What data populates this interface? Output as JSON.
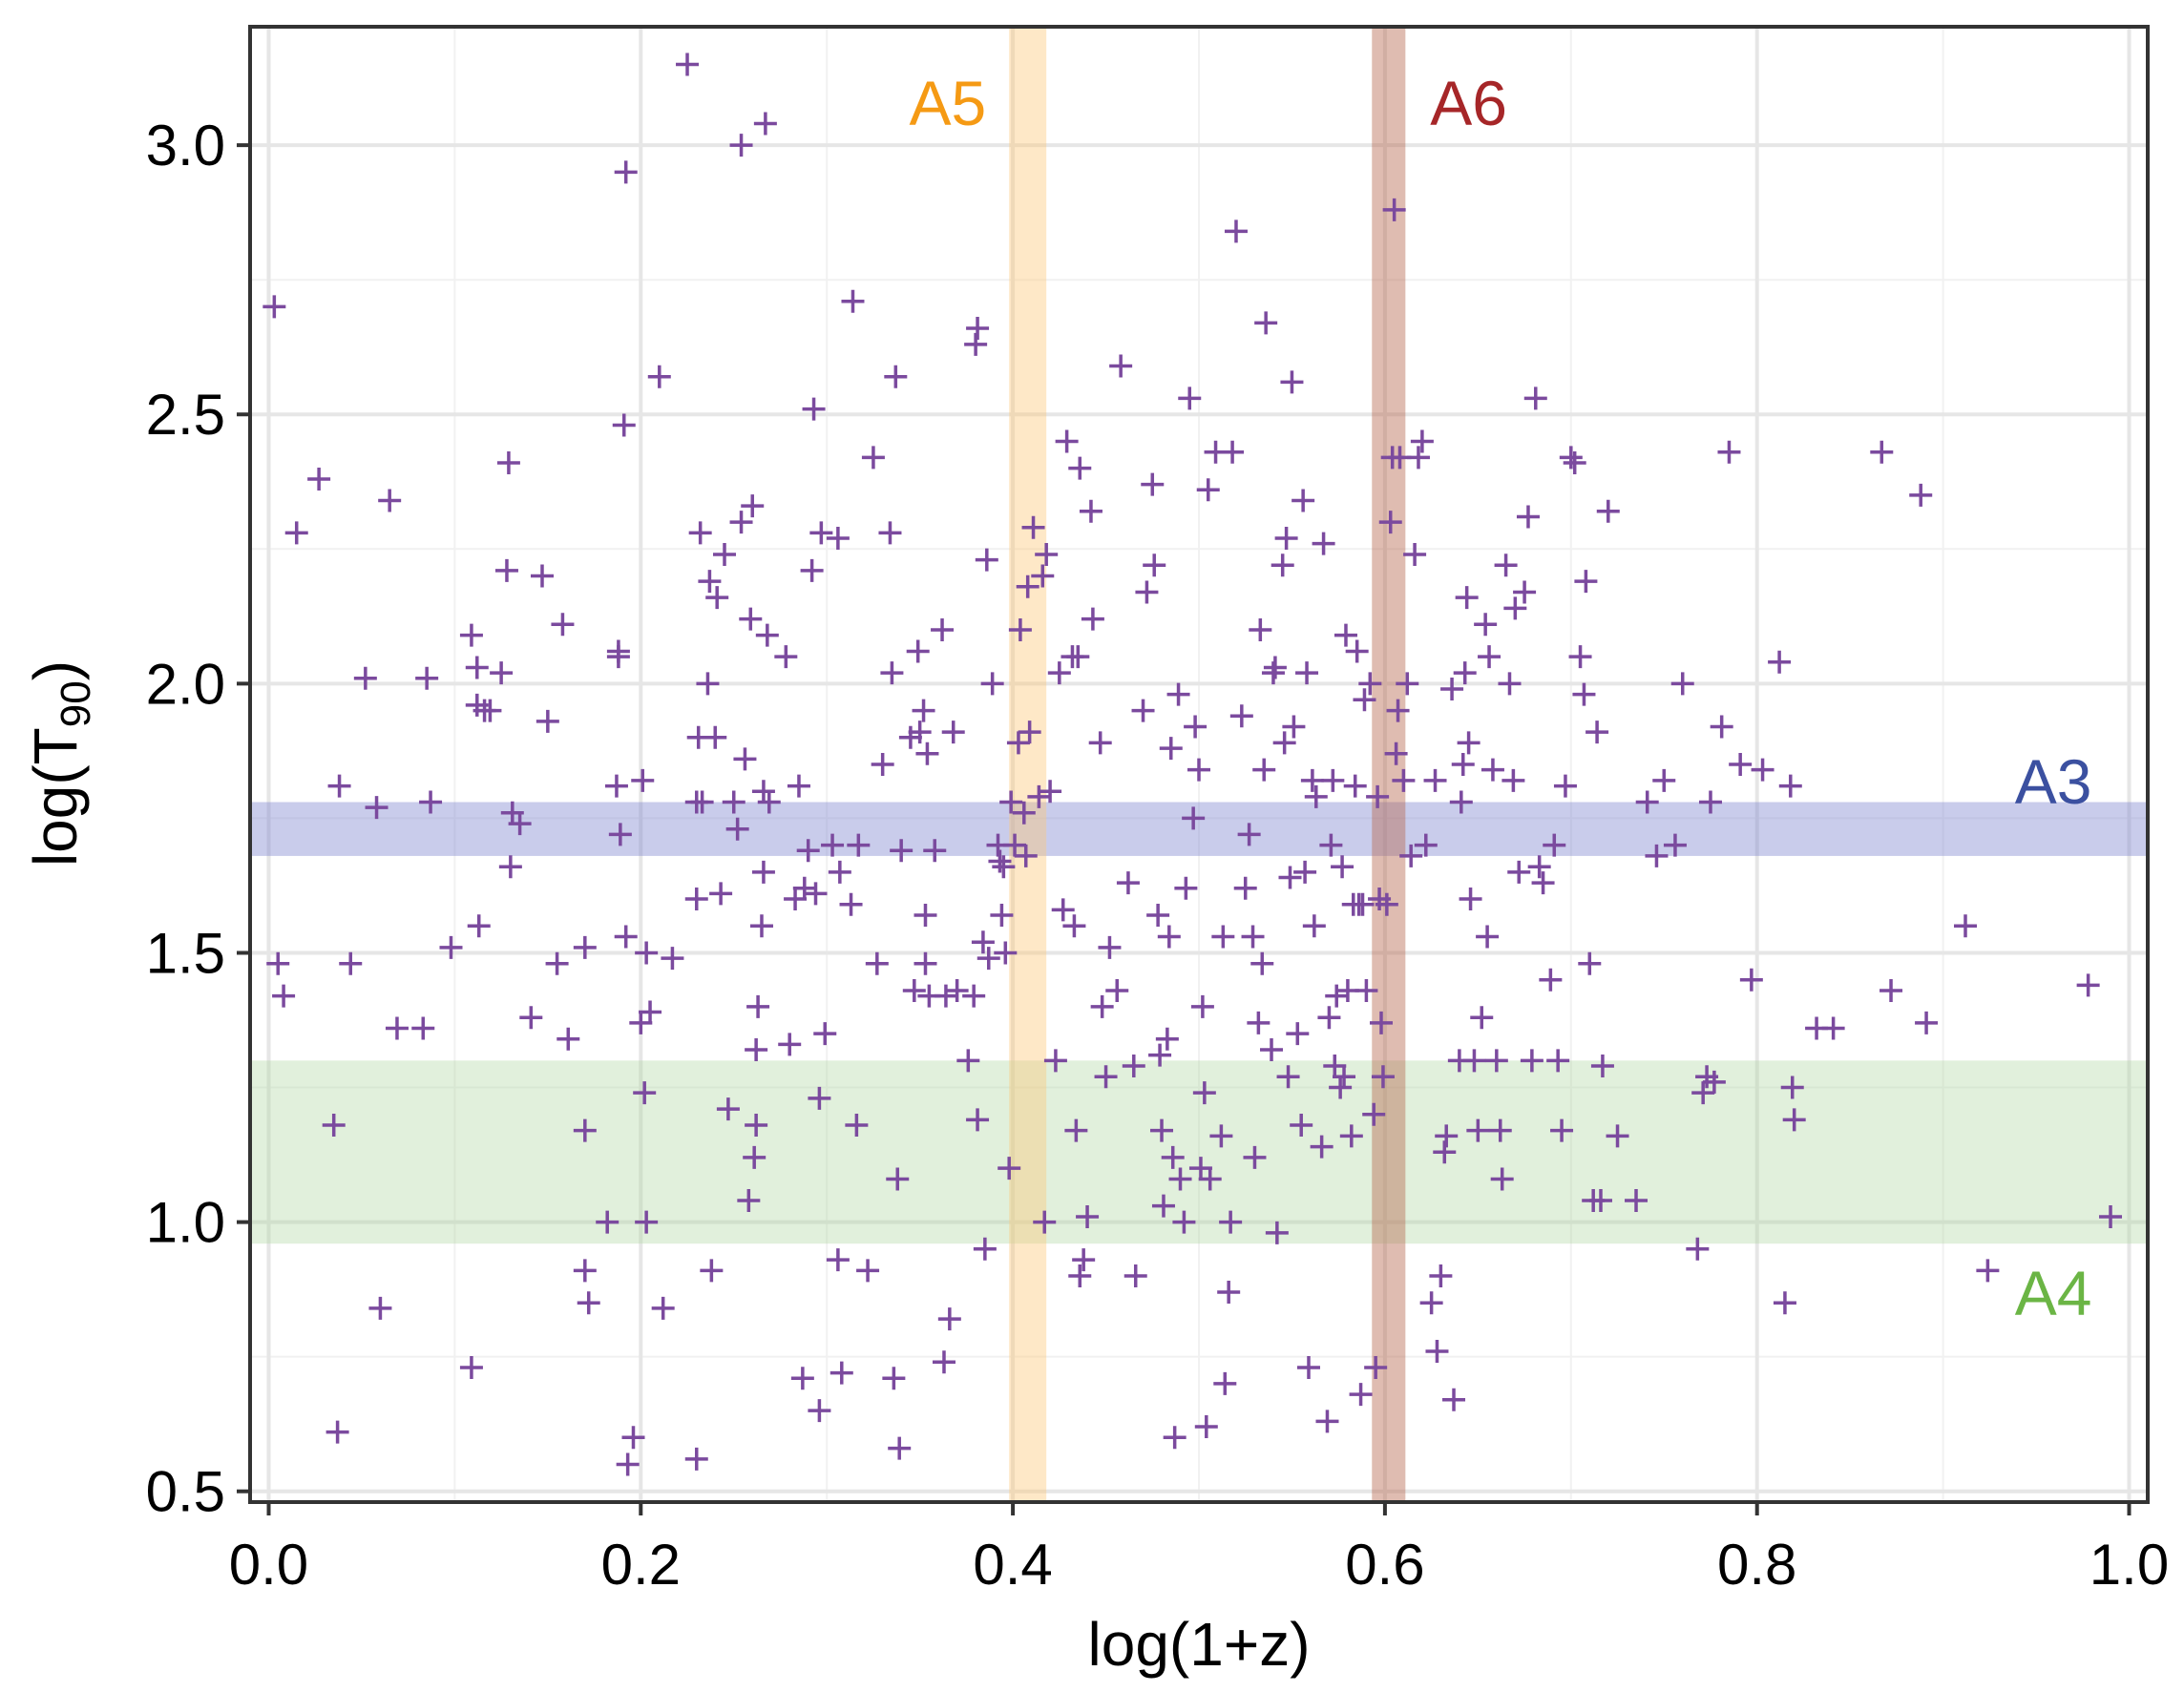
{
  "chart_data": {
    "type": "scatter",
    "xlabel": "log(1+z)",
    "ylabel": {
      "base": "log(T",
      "subscript": "90",
      "tail": ")"
    },
    "xlim": [
      -0.01,
      1.01
    ],
    "ylim": [
      0.48,
      3.22
    ],
    "xticks": [
      {
        "value": 0.0,
        "label": "0.0"
      },
      {
        "value": 0.2,
        "label": "0.2"
      },
      {
        "value": 0.4,
        "label": "0.4"
      },
      {
        "value": 0.6,
        "label": "0.6"
      },
      {
        "value": 0.8,
        "label": "0.8"
      },
      {
        "value": 1.0,
        "label": "1.0"
      }
    ],
    "yticks": [
      {
        "value": 0.5,
        "label": "0.5"
      },
      {
        "value": 1.0,
        "label": "1.0"
      },
      {
        "value": 1.5,
        "label": "1.5"
      },
      {
        "value": 2.0,
        "label": "2.0"
      },
      {
        "value": 2.5,
        "label": "2.5"
      },
      {
        "value": 3.0,
        "label": "3.0"
      }
    ],
    "grid": true,
    "marker": "+",
    "marker_color": "#7B4A9E",
    "bands": [
      {
        "name": "A3",
        "orientation": "horizontal",
        "range": [
          1.68,
          1.78
        ],
        "color": "#7F86CF",
        "opacity": 0.42,
        "label_color": "#3B50A0",
        "label_at": [
          0.98,
          1.82
        ]
      },
      {
        "name": "A4",
        "orientation": "horizontal",
        "range": [
          0.96,
          1.3
        ],
        "color": "#A8D39A",
        "opacity": 0.35,
        "label_color": "#6BB545",
        "label_at": [
          0.98,
          0.87
        ]
      },
      {
        "name": "A5",
        "orientation": "vertical",
        "range": [
          0.398,
          0.418
        ],
        "color": "#FDC97A",
        "opacity": 0.42,
        "label_color": "#F59A14",
        "label_at": [
          0.365,
          3.08
        ]
      },
      {
        "name": "A6",
        "orientation": "vertical",
        "range": [
          0.593,
          0.611
        ],
        "color": "#B96A52",
        "opacity": 0.45,
        "label_color": "#A62628",
        "label_at": [
          0.645,
          3.08
        ]
      }
    ],
    "points": [
      [
        0.003,
        2.7
      ],
      [
        0.005,
        1.48
      ],
      [
        0.008,
        1.42
      ],
      [
        0.015,
        2.28
      ],
      [
        0.027,
        2.38
      ],
      [
        0.035,
        1.18
      ],
      [
        0.037,
        0.61
      ],
      [
        0.038,
        1.81
      ],
      [
        0.044,
        1.48
      ],
      [
        0.052,
        2.01
      ],
      [
        0.058,
        1.77
      ],
      [
        0.06,
        0.84
      ],
      [
        0.065,
        2.34
      ],
      [
        0.069,
        1.36
      ],
      [
        0.083,
        1.36
      ],
      [
        0.085,
        2.01
      ],
      [
        0.087,
        1.78
      ],
      [
        0.098,
        1.51
      ],
      [
        0.109,
        2.09
      ],
      [
        0.109,
        0.73
      ],
      [
        0.112,
        2.03
      ],
      [
        0.112,
        1.96
      ],
      [
        0.113,
        1.55
      ],
      [
        0.116,
        1.95
      ],
      [
        0.119,
        1.95
      ],
      [
        0.125,
        2.02
      ],
      [
        0.128,
        2.21
      ],
      [
        0.129,
        2.41
      ],
      [
        0.13,
        1.66
      ],
      [
        0.131,
        1.76
      ],
      [
        0.135,
        1.74
      ],
      [
        0.141,
        1.38
      ],
      [
        0.147,
        2.2
      ],
      [
        0.15,
        1.93
      ],
      [
        0.155,
        1.48
      ],
      [
        0.158,
        2.11
      ],
      [
        0.161,
        1.34
      ],
      [
        0.17,
        1.51
      ],
      [
        0.17,
        1.17
      ],
      [
        0.17,
        0.91
      ],
      [
        0.172,
        0.85
      ],
      [
        0.182,
        1.0
      ],
      [
        0.187,
        1.81
      ],
      [
        0.188,
        2.06
      ],
      [
        0.188,
        2.05
      ],
      [
        0.189,
        1.72
      ],
      [
        0.191,
        2.48
      ],
      [
        0.192,
        1.53
      ],
      [
        0.192,
        2.95
      ],
      [
        0.193,
        0.55
      ],
      [
        0.196,
        0.6
      ],
      [
        0.2,
        1.37
      ],
      [
        0.201,
        1.82
      ],
      [
        0.202,
        1.24
      ],
      [
        0.203,
        1.5
      ],
      [
        0.203,
        1.0
      ],
      [
        0.205,
        1.39
      ],
      [
        0.21,
        2.57
      ],
      [
        0.212,
        0.84
      ],
      [
        0.217,
        1.49
      ],
      [
        0.225,
        3.15
      ],
      [
        0.23,
        0.56
      ],
      [
        0.23,
        1.78
      ],
      [
        0.23,
        1.6
      ],
      [
        0.231,
        1.9
      ],
      [
        0.232,
        2.28
      ],
      [
        0.233,
        1.78
      ],
      [
        0.236,
        2.0
      ],
      [
        0.237,
        2.19
      ],
      [
        0.238,
        0.91
      ],
      [
        0.24,
        1.9
      ],
      [
        0.241,
        2.16
      ],
      [
        0.243,
        1.61
      ],
      [
        0.245,
        2.24
      ],
      [
        0.247,
        1.21
      ],
      [
        0.25,
        1.78
      ],
      [
        0.252,
        1.73
      ],
      [
        0.254,
        3.0
      ],
      [
        0.254,
        2.3
      ],
      [
        0.256,
        1.86
      ],
      [
        0.258,
        1.04
      ],
      [
        0.259,
        2.12
      ],
      [
        0.26,
        2.33
      ],
      [
        0.261,
        1.12
      ],
      [
        0.262,
        1.32
      ],
      [
        0.262,
        1.18
      ],
      [
        0.263,
        1.4
      ],
      [
        0.265,
        1.55
      ],
      [
        0.266,
        1.8
      ],
      [
        0.266,
        1.65
      ],
      [
        0.267,
        3.04
      ],
      [
        0.268,
        2.09
      ],
      [
        0.269,
        1.78
      ],
      [
        0.278,
        2.05
      ],
      [
        0.28,
        1.33
      ],
      [
        0.283,
        1.6
      ],
      [
        0.285,
        1.81
      ],
      [
        0.287,
        0.71
      ],
      [
        0.288,
        1.62
      ],
      [
        0.29,
        1.69
      ],
      [
        0.292,
        2.21
      ],
      [
        0.293,
        2.51
      ],
      [
        0.294,
        1.61
      ],
      [
        0.296,
        1.23
      ],
      [
        0.296,
        0.65
      ],
      [
        0.297,
        2.28
      ],
      [
        0.299,
        1.35
      ],
      [
        0.303,
        1.7
      ],
      [
        0.306,
        2.27
      ],
      [
        0.306,
        0.93
      ],
      [
        0.307,
        1.65
      ],
      [
        0.308,
        0.72
      ],
      [
        0.313,
        1.59
      ],
      [
        0.314,
        2.71
      ],
      [
        0.316,
        1.18
      ],
      [
        0.317,
        1.7
      ],
      [
        0.322,
        0.91
      ],
      [
        0.325,
        2.42
      ],
      [
        0.327,
        1.48
      ],
      [
        0.33,
        1.85
      ],
      [
        0.334,
        2.28
      ],
      [
        0.335,
        2.02
      ],
      [
        0.336,
        0.71
      ],
      [
        0.337,
        2.57
      ],
      [
        0.338,
        1.08
      ],
      [
        0.339,
        0.58
      ],
      [
        0.34,
        1.69
      ],
      [
        0.345,
        1.9
      ],
      [
        0.347,
        1.43
      ],
      [
        0.349,
        2.06
      ],
      [
        0.35,
        1.91
      ],
      [
        0.352,
        1.95
      ],
      [
        0.353,
        1.57
      ],
      [
        0.353,
        1.48
      ],
      [
        0.354,
        1.87
      ],
      [
        0.355,
        1.42
      ],
      [
        0.358,
        1.69
      ],
      [
        0.362,
        2.1
      ],
      [
        0.363,
        0.74
      ],
      [
        0.364,
        1.42
      ],
      [
        0.366,
        0.82
      ],
      [
        0.368,
        1.91
      ],
      [
        0.37,
        1.43
      ],
      [
        0.376,
        1.3
      ],
      [
        0.379,
        1.42
      ],
      [
        0.38,
        2.63
      ],
      [
        0.381,
        2.66
      ],
      [
        0.381,
        1.19
      ],
      [
        0.384,
        1.52
      ],
      [
        0.385,
        0.95
      ],
      [
        0.386,
        2.23
      ],
      [
        0.387,
        1.49
      ],
      [
        0.389,
        2.0
      ],
      [
        0.392,
        1.7
      ],
      [
        0.393,
        1.67
      ],
      [
        0.394,
        1.57
      ],
      [
        0.395,
        1.66
      ],
      [
        0.396,
        1.5
      ],
      [
        0.398,
        1.1
      ],
      [
        0.399,
        1.78
      ],
      [
        0.401,
        1.7
      ],
      [
        0.403,
        1.89
      ],
      [
        0.404,
        2.1
      ],
      [
        0.406,
        1.76
      ],
      [
        0.407,
        1.68
      ],
      [
        0.408,
        2.18
      ],
      [
        0.409,
        1.91
      ],
      [
        0.411,
        2.29
      ],
      [
        0.414,
        1.79
      ],
      [
        0.416,
        2.2
      ],
      [
        0.417,
        1.0
      ],
      [
        0.418,
        2.24
      ],
      [
        0.42,
        1.8
      ],
      [
        0.423,
        1.3
      ],
      [
        0.425,
        2.02
      ],
      [
        0.427,
        1.58
      ],
      [
        0.429,
        2.45
      ],
      [
        0.432,
        2.05
      ],
      [
        0.433,
        1.55
      ],
      [
        0.434,
        1.17
      ],
      [
        0.435,
        2.05
      ],
      [
        0.436,
        2.4
      ],
      [
        0.436,
        0.9
      ],
      [
        0.438,
        0.93
      ],
      [
        0.44,
        1.01
      ],
      [
        0.442,
        2.32
      ],
      [
        0.443,
        2.12
      ],
      [
        0.447,
        1.89
      ],
      [
        0.448,
        1.4
      ],
      [
        0.45,
        1.27
      ],
      [
        0.452,
        1.51
      ],
      [
        0.456,
        1.43
      ],
      [
        0.458,
        2.59
      ],
      [
        0.462,
        1.63
      ],
      [
        0.465,
        1.29
      ],
      [
        0.466,
        0.9
      ],
      [
        0.47,
        1.95
      ],
      [
        0.472,
        2.17
      ],
      [
        0.475,
        2.37
      ],
      [
        0.476,
        2.22
      ],
      [
        0.478,
        1.57
      ],
      [
        0.479,
        1.31
      ],
      [
        0.48,
        1.17
      ],
      [
        0.481,
        1.03
      ],
      [
        0.483,
        1.34
      ],
      [
        0.484,
        1.53
      ],
      [
        0.485,
        1.88
      ],
      [
        0.486,
        1.12
      ],
      [
        0.487,
        0.6
      ],
      [
        0.489,
        1.98
      ],
      [
        0.49,
        1.08
      ],
      [
        0.492,
        1.0
      ],
      [
        0.493,
        1.62
      ],
      [
        0.495,
        2.53
      ],
      [
        0.497,
        1.75
      ],
      [
        0.498,
        1.92
      ],
      [
        0.5,
        1.84
      ],
      [
        0.501,
        1.1
      ],
      [
        0.502,
        1.4
      ],
      [
        0.503,
        1.24
      ],
      [
        0.504,
        0.62
      ],
      [
        0.505,
        2.36
      ],
      [
        0.506,
        1.08
      ],
      [
        0.509,
        2.43
      ],
      [
        0.512,
        1.16
      ],
      [
        0.513,
        1.53
      ],
      [
        0.514,
        0.7
      ],
      [
        0.516,
        0.87
      ],
      [
        0.517,
        1.0
      ],
      [
        0.518,
        2.43
      ],
      [
        0.52,
        2.84
      ],
      [
        0.523,
        1.94
      ],
      [
        0.525,
        1.62
      ],
      [
        0.527,
        1.72
      ],
      [
        0.529,
        1.53
      ],
      [
        0.53,
        1.12
      ],
      [
        0.532,
        1.37
      ],
      [
        0.533,
        2.1
      ],
      [
        0.534,
        1.48
      ],
      [
        0.535,
        1.84
      ],
      [
        0.536,
        2.67
      ],
      [
        0.539,
        1.32
      ],
      [
        0.54,
        2.02
      ],
      [
        0.541,
        2.03
      ],
      [
        0.542,
        0.98
      ],
      [
        0.545,
        2.22
      ],
      [
        0.546,
        1.89
      ],
      [
        0.547,
        2.27
      ],
      [
        0.548,
        1.27
      ],
      [
        0.549,
        1.64
      ],
      [
        0.55,
        2.56
      ],
      [
        0.551,
        1.92
      ],
      [
        0.553,
        1.35
      ],
      [
        0.555,
        1.18
      ],
      [
        0.556,
        2.34
      ],
      [
        0.557,
        1.65
      ],
      [
        0.558,
        2.02
      ],
      [
        0.559,
        0.73
      ],
      [
        0.561,
        1.82
      ],
      [
        0.562,
        1.55
      ],
      [
        0.563,
        1.79
      ],
      [
        0.566,
        1.14
      ],
      [
        0.567,
        2.26
      ],
      [
        0.569,
        0.63
      ],
      [
        0.57,
        1.38
      ],
      [
        0.571,
        1.7
      ],
      [
        0.572,
        1.82
      ],
      [
        0.573,
        1.29
      ],
      [
        0.574,
        1.42
      ],
      [
        0.576,
        1.25
      ],
      [
        0.577,
        1.66
      ],
      [
        0.578,
        1.27
      ],
      [
        0.579,
        2.09
      ],
      [
        0.58,
        1.43
      ],
      [
        0.582,
        1.16
      ],
      [
        0.583,
        1.59
      ],
      [
        0.584,
        1.81
      ],
      [
        0.585,
        2.06
      ],
      [
        0.586,
        1.59
      ],
      [
        0.587,
        0.68
      ],
      [
        0.588,
        1.59
      ],
      [
        0.589,
        1.97
      ],
      [
        0.59,
        1.43
      ],
      [
        0.592,
        2.0
      ],
      [
        0.594,
        1.2
      ],
      [
        0.595,
        0.73
      ],
      [
        0.596,
        1.79
      ],
      [
        0.597,
        1.6
      ],
      [
        0.598,
        1.37
      ],
      [
        0.599,
        1.27
      ],
      [
        0.601,
        1.59
      ],
      [
        0.603,
        2.3
      ],
      [
        0.604,
        2.42
      ],
      [
        0.605,
        2.88
      ],
      [
        0.606,
        1.87
      ],
      [
        0.607,
        1.95
      ],
      [
        0.608,
        2.42
      ],
      [
        0.61,
        1.82
      ],
      [
        0.612,
        2.0
      ],
      [
        0.614,
        1.68
      ],
      [
        0.616,
        2.24
      ],
      [
        0.618,
        2.42
      ],
      [
        0.62,
        2.45
      ],
      [
        0.622,
        1.7
      ],
      [
        0.625,
        0.85
      ],
      [
        0.627,
        1.82
      ],
      [
        0.628,
        0.76
      ],
      [
        0.63,
        0.9
      ],
      [
        0.632,
        1.13
      ],
      [
        0.633,
        1.16
      ],
      [
        0.636,
        1.99
      ],
      [
        0.637,
        0.67
      ],
      [
        0.64,
        1.3
      ],
      [
        0.641,
        1.78
      ],
      [
        0.642,
        1.85
      ],
      [
        0.643,
        2.02
      ],
      [
        0.644,
        2.16
      ],
      [
        0.645,
        1.89
      ],
      [
        0.646,
        1.6
      ],
      [
        0.648,
        1.3
      ],
      [
        0.65,
        1.17
      ],
      [
        0.652,
        1.38
      ],
      [
        0.654,
        2.11
      ],
      [
        0.655,
        1.53
      ],
      [
        0.656,
        2.05
      ],
      [
        0.658,
        1.84
      ],
      [
        0.66,
        1.3
      ],
      [
        0.662,
        1.17
      ],
      [
        0.663,
        1.08
      ],
      [
        0.665,
        2.22
      ],
      [
        0.667,
        2.0
      ],
      [
        0.669,
        1.82
      ],
      [
        0.67,
        2.14
      ],
      [
        0.672,
        1.65
      ],
      [
        0.675,
        2.17
      ],
      [
        0.677,
        2.31
      ],
      [
        0.679,
        1.3
      ],
      [
        0.681,
        2.53
      ],
      [
        0.683,
        1.66
      ],
      [
        0.685,
        1.63
      ],
      [
        0.689,
        1.45
      ],
      [
        0.691,
        1.7
      ],
      [
        0.693,
        1.3
      ],
      [
        0.695,
        1.17
      ],
      [
        0.697,
        1.81
      ],
      [
        0.7,
        2.42
      ],
      [
        0.702,
        2.41
      ],
      [
        0.705,
        2.05
      ],
      [
        0.707,
        1.98
      ],
      [
        0.708,
        2.19
      ],
      [
        0.71,
        1.48
      ],
      [
        0.712,
        1.04
      ],
      [
        0.714,
        1.91
      ],
      [
        0.716,
        1.04
      ],
      [
        0.717,
        1.29
      ],
      [
        0.72,
        2.32
      ],
      [
        0.725,
        1.16
      ],
      [
        0.735,
        1.04
      ],
      [
        0.741,
        1.78
      ],
      [
        0.746,
        1.68
      ],
      [
        0.75,
        1.82
      ],
      [
        0.756,
        1.7
      ],
      [
        0.76,
        2.0
      ],
      [
        0.768,
        0.95
      ],
      [
        0.771,
        1.24
      ],
      [
        0.773,
        1.27
      ],
      [
        0.775,
        1.78
      ],
      [
        0.777,
        1.26
      ],
      [
        0.781,
        1.92
      ],
      [
        0.785,
        2.43
      ],
      [
        0.791,
        1.85
      ],
      [
        0.797,
        1.45
      ],
      [
        0.803,
        1.84
      ],
      [
        0.812,
        2.04
      ],
      [
        0.815,
        0.85
      ],
      [
        0.818,
        1.81
      ],
      [
        0.819,
        1.25
      ],
      [
        0.82,
        1.19
      ],
      [
        0.832,
        1.36
      ],
      [
        0.841,
        1.36
      ],
      [
        0.867,
        2.43
      ],
      [
        0.872,
        1.43
      ],
      [
        0.888,
        2.35
      ],
      [
        0.891,
        1.37
      ],
      [
        0.912,
        1.55
      ],
      [
        0.924,
        0.91
      ],
      [
        0.978,
        1.44
      ],
      [
        0.99,
        1.01
      ]
    ]
  }
}
